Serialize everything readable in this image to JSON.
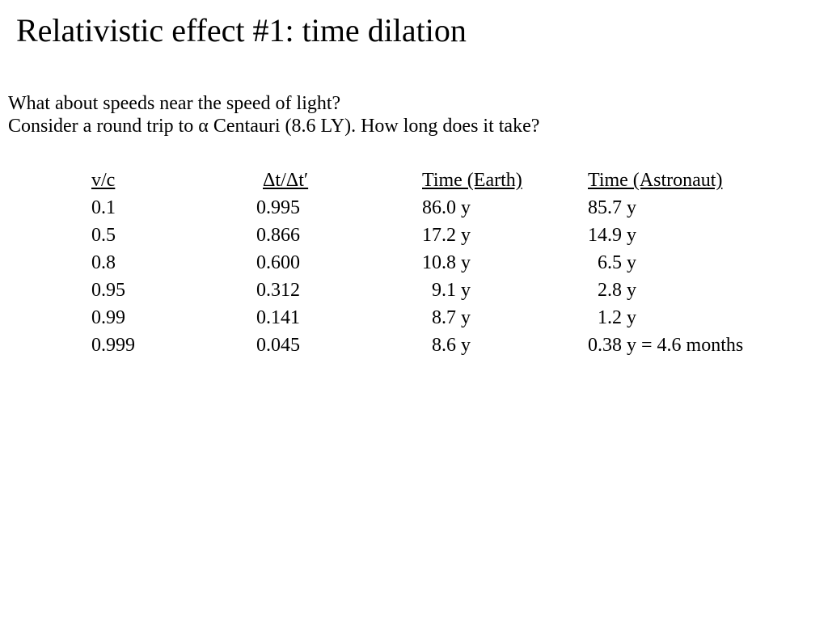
{
  "slide": {
    "title": "Relativistic effect #1: time dilation",
    "intro": [
      "What about speeds near the speed of light?",
      "Consider a round trip to α Centauri (8.6 LY). How long does it take?"
    ]
  },
  "table": {
    "headers": [
      "v/c",
      "Δt/Δt′",
      "Time (Earth)",
      "Time (Astronaut)"
    ],
    "rows": [
      [
        "0.1",
        "0.995",
        "86.0 y",
        "85.7 y"
      ],
      [
        "0.5",
        "0.866",
        "17.2 y",
        "14.9 y"
      ],
      [
        "0.8",
        "0.600",
        "10.8 y",
        "  6.5 y"
      ],
      [
        "0.95",
        "0.312",
        "  9.1 y",
        "  2.8 y"
      ],
      [
        "0.99",
        "0.141",
        "  8.7 y",
        "  1.2 y"
      ],
      [
        "0.999",
        "0.045",
        "  8.6 y",
        "0.38 y = 4.6 months"
      ]
    ]
  }
}
